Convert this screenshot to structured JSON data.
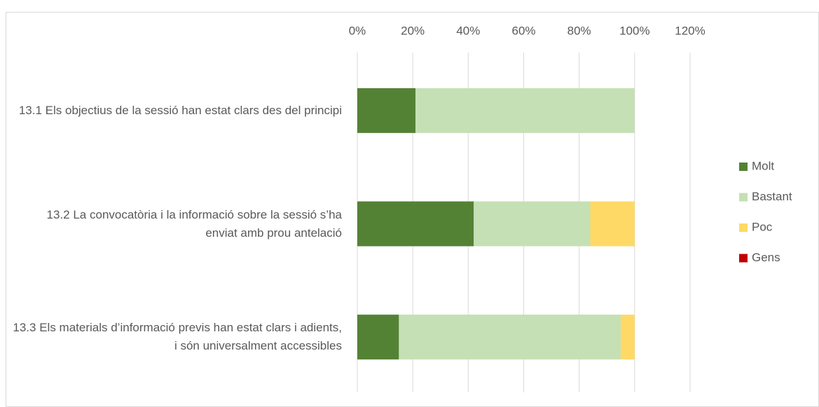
{
  "chart_data": {
    "type": "stacked_bar_horizontal",
    "categories": [
      "13.1 Els objectius de la sessió han estat clars des del principi",
      "13.2 La convocatòria i la informació sobre la sessió s’ha enviat amb prou antelació",
      "13.3 Els materials d’informació previs han estat clars i adients, i són universalment accessibles"
    ],
    "series": [
      {
        "name": "Molt",
        "color": "#548235",
        "values": [
          21,
          42,
          15
        ]
      },
      {
        "name": "Bastant",
        "color": "#c5e0b4",
        "values": [
          79,
          42,
          80
        ]
      },
      {
        "name": "Poc",
        "color": "#ffd966",
        "values": [
          0,
          16,
          5
        ]
      },
      {
        "name": "Gens",
        "color": "#c00000",
        "values": [
          0,
          0,
          0
        ]
      }
    ],
    "xlim": [
      0,
      120
    ],
    "xticks": [
      {
        "value": 0,
        "label": "0%"
      },
      {
        "value": 20,
        "label": "20%"
      },
      {
        "value": 40,
        "label": "40%"
      },
      {
        "value": 60,
        "label": "60%"
      },
      {
        "value": 80,
        "label": "80%"
      },
      {
        "value": 100,
        "label": "100%"
      },
      {
        "value": 120,
        "label": "120%"
      }
    ],
    "grid": true,
    "legend": "right"
  }
}
